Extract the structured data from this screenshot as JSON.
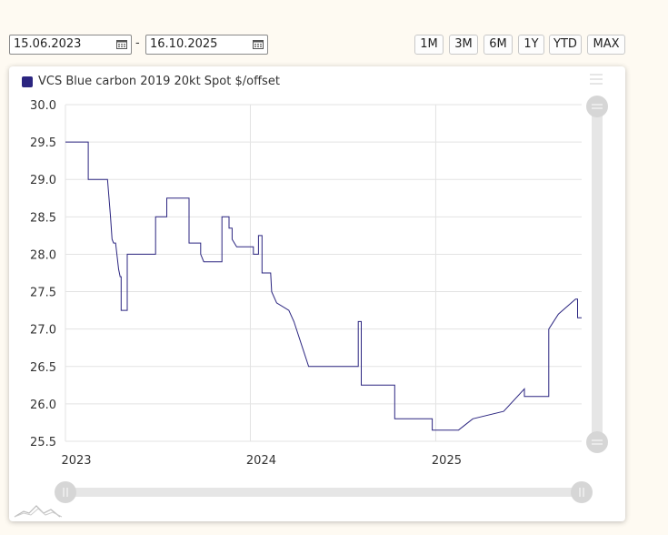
{
  "date_range": {
    "from": "15.06.2023",
    "separator": "-",
    "to": "16.10.2025"
  },
  "range_buttons": [
    "1M",
    "3M",
    "6M",
    "1Y",
    "YTD",
    "MAX"
  ],
  "colors": {
    "series": "#2b2580",
    "grid": "#e3e3e3",
    "slider": "#e6e6e6",
    "handle": "#d6d6d6"
  },
  "icons": [
    "calendar-icon",
    "fullscreen-icon",
    "chart-logo-icon"
  ],
  "chart_data": {
    "type": "line",
    "series": [
      {
        "name": "VCS Blue carbon 2019 20kt Spot $/offset",
        "x": [
          "2023-01-01",
          "2023-02-15",
          "2023-02-15",
          "2023-03-25",
          "2023-03-31",
          "2023-04-03",
          "2023-04-06",
          "2023-04-10",
          "2023-04-16",
          "2023-04-19",
          "2023-04-21",
          "2023-04-21",
          "2023-04-29",
          "2023-05-03",
          "2023-05-03",
          "2023-06-28",
          "2023-06-28",
          "2023-07-20",
          "2023-07-20",
          "2023-09-02",
          "2023-09-02",
          "2023-09-25",
          "2023-09-25",
          "2023-10-01",
          "2023-10-03",
          "2023-11-06",
          "2023-11-06",
          "2023-11-20",
          "2023-11-20",
          "2023-11-26",
          "2023-11-26",
          "2023-12-05",
          "2023-12-10",
          "2024-01-07",
          "2024-01-07",
          "2024-01-17",
          "2024-01-17",
          "2024-01-24",
          "2024-01-24",
          "2024-01-31",
          "2024-01-31",
          "2024-02-01",
          "2024-02-10",
          "2024-02-12",
          "2024-02-12",
          "2024-02-22",
          "2024-02-22",
          "2024-03-17",
          "2024-03-17",
          "2024-03-27",
          "2024-03-27",
          "2024-04-25",
          "2024-04-25",
          "2024-08-01",
          "2024-08-01",
          "2024-08-07",
          "2024-08-07",
          "2024-08-30",
          "2024-09-01",
          "2024-09-01",
          "2024-10-12",
          "2024-10-12",
          "2024-12-25",
          "2024-12-25",
          "2025-02-10",
          "2025-02-12",
          "2025-02-15",
          "2025-03-15",
          "2025-03-15",
          "2025-05-15",
          "2025-05-15",
          "2025-06-25",
          "2025-06-25",
          "2025-08-12",
          "2025-08-12",
          "2025-08-31",
          "2025-08-31",
          "2025-10-04",
          "2025-10-08",
          "2025-10-08",
          "2025-10-16"
        ],
        "y": [
          29.5,
          29.5,
          29.0,
          29.0,
          28.5,
          28.2,
          28.15,
          28.15,
          27.8,
          27.7,
          27.7,
          27.25,
          27.25,
          27.25,
          28.0,
          28.0,
          28.5,
          28.5,
          28.75,
          28.75,
          28.15,
          28.15,
          28.0,
          27.9,
          27.9,
          27.9,
          28.5,
          28.5,
          28.35,
          28.35,
          28.2,
          28.1,
          28.1,
          28.1,
          28.0,
          28.0,
          28.25,
          28.25,
          27.75,
          27.75,
          27.75,
          27.75,
          27.75,
          27.5,
          27.5,
          27.35,
          27.35,
          27.25,
          27.25,
          27.1,
          27.1,
          26.5,
          26.5,
          26.5,
          27.1,
          27.1,
          26.25,
          26.25,
          26.25,
          26.25,
          26.25,
          25.8,
          25.8,
          25.65,
          25.65,
          25.65,
          25.65,
          25.8,
          25.8,
          25.9,
          25.9,
          26.2,
          26.1,
          26.1,
          27.0,
          27.2,
          27.2,
          27.4,
          27.4,
          27.15,
          27.15
        ]
      }
    ],
    "x_ticks": [
      "2023",
      "2024",
      "2025"
    ],
    "ylim": [
      25.5,
      30.0
    ],
    "y_ticks": [
      25.5,
      26.0,
      26.5,
      27.0,
      27.5,
      28.0,
      28.5,
      29.0,
      29.5,
      30.0
    ],
    "xlim": [
      "2023-01-01",
      "2025-10-16"
    ],
    "grid": true,
    "legend_position": "top-left",
    "navigator": true
  }
}
